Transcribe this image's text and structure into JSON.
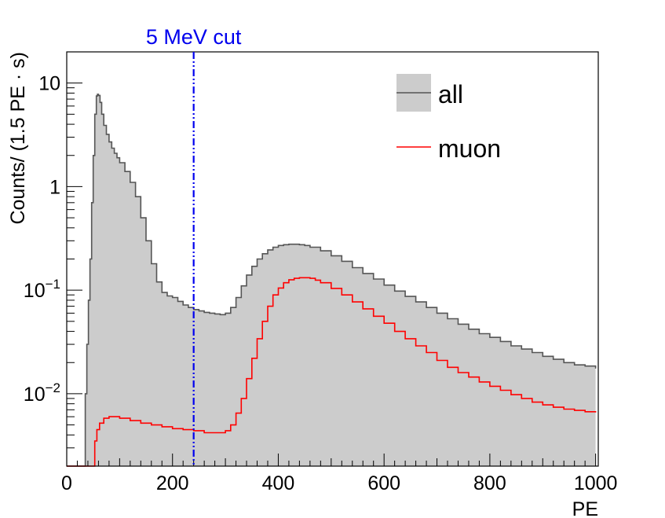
{
  "chart_data": {
    "type": "area",
    "xlabel": "PE",
    "ylabel": "Counts/ (1.5 PE · s)",
    "xlim": [
      0,
      1005
    ],
    "ylim": [
      0.002,
      20
    ],
    "yscale": "log",
    "x_ticks": [
      0,
      200,
      400,
      600,
      800,
      1000
    ],
    "y_ticks": [
      {
        "value": 10,
        "base": "10",
        "exp": ""
      },
      {
        "value": 1,
        "base": "1",
        "exp": ""
      },
      {
        "value": 0.1,
        "base": "10",
        "exp": "−1"
      },
      {
        "value": 0.01,
        "base": "10",
        "exp": "−2"
      }
    ],
    "grid": false,
    "legend_position": "top-right",
    "series": [
      {
        "name": "all",
        "style": "filled",
        "color": "#555555",
        "fill": "#cccccc",
        "points": [
          [
            0,
            0.0015
          ],
          [
            30,
            0.0015
          ],
          [
            34,
            0.0015
          ],
          [
            35,
            0.01
          ],
          [
            38,
            0.03
          ],
          [
            41,
            0.08
          ],
          [
            44,
            0.2
          ],
          [
            47,
            0.7
          ],
          [
            50,
            2.0
          ],
          [
            53,
            5.0
          ],
          [
            56,
            7.5
          ],
          [
            58,
            7.8
          ],
          [
            60,
            7.6
          ],
          [
            63,
            6.5
          ],
          [
            66,
            5.0
          ],
          [
            70,
            3.9
          ],
          [
            75,
            3.2
          ],
          [
            80,
            2.7
          ],
          [
            85,
            2.35
          ],
          [
            90,
            2.1
          ],
          [
            95,
            1.9
          ],
          [
            100,
            1.7
          ],
          [
            110,
            1.4
          ],
          [
            120,
            1.1
          ],
          [
            130,
            0.8
          ],
          [
            140,
            0.5
          ],
          [
            150,
            0.3
          ],
          [
            160,
            0.18
          ],
          [
            170,
            0.12
          ],
          [
            180,
            0.095
          ],
          [
            190,
            0.088
          ],
          [
            200,
            0.085
          ],
          [
            210,
            0.078
          ],
          [
            220,
            0.072
          ],
          [
            230,
            0.068
          ],
          [
            240,
            0.065
          ],
          [
            250,
            0.063
          ],
          [
            260,
            0.061
          ],
          [
            270,
            0.06
          ],
          [
            280,
            0.059
          ],
          [
            290,
            0.058
          ],
          [
            300,
            0.06
          ],
          [
            310,
            0.068
          ],
          [
            320,
            0.085
          ],
          [
            330,
            0.11
          ],
          [
            340,
            0.14
          ],
          [
            350,
            0.17
          ],
          [
            360,
            0.2
          ],
          [
            370,
            0.225
          ],
          [
            380,
            0.245
          ],
          [
            390,
            0.26
          ],
          [
            400,
            0.27
          ],
          [
            410,
            0.275
          ],
          [
            420,
            0.278
          ],
          [
            430,
            0.278
          ],
          [
            440,
            0.275
          ],
          [
            450,
            0.27
          ],
          [
            460,
            0.26
          ],
          [
            480,
            0.24
          ],
          [
            500,
            0.215
          ],
          [
            520,
            0.19
          ],
          [
            540,
            0.165
          ],
          [
            560,
            0.145
          ],
          [
            580,
            0.128
          ],
          [
            600,
            0.112
          ],
          [
            620,
            0.098
          ],
          [
            640,
            0.087
          ],
          [
            660,
            0.077
          ],
          [
            680,
            0.068
          ],
          [
            700,
            0.06
          ],
          [
            720,
            0.053
          ],
          [
            740,
            0.047
          ],
          [
            760,
            0.042
          ],
          [
            780,
            0.038
          ],
          [
            800,
            0.035
          ],
          [
            820,
            0.032
          ],
          [
            840,
            0.029
          ],
          [
            860,
            0.027
          ],
          [
            880,
            0.025
          ],
          [
            900,
            0.023
          ],
          [
            920,
            0.0215
          ],
          [
            940,
            0.02
          ],
          [
            960,
            0.019
          ],
          [
            980,
            0.0185
          ],
          [
            1000,
            0.0175
          ]
        ]
      },
      {
        "name": "muon",
        "style": "line",
        "color": "#ff0000",
        "points": [
          [
            0,
            0.0015
          ],
          [
            45,
            0.0015
          ],
          [
            49,
            0.0015
          ],
          [
            50,
            0.002
          ],
          [
            53,
            0.0035
          ],
          [
            57,
            0.0045
          ],
          [
            62,
            0.0052
          ],
          [
            70,
            0.0058
          ],
          [
            80,
            0.006
          ],
          [
            90,
            0.006
          ],
          [
            100,
            0.0058
          ],
          [
            120,
            0.0055
          ],
          [
            140,
            0.0052
          ],
          [
            160,
            0.005
          ],
          [
            180,
            0.0048
          ],
          [
            200,
            0.0046
          ],
          [
            220,
            0.0045
          ],
          [
            240,
            0.0044
          ],
          [
            260,
            0.0042
          ],
          [
            280,
            0.0042
          ],
          [
            300,
            0.0044
          ],
          [
            310,
            0.005
          ],
          [
            320,
            0.0065
          ],
          [
            330,
            0.009
          ],
          [
            340,
            0.014
          ],
          [
            350,
            0.022
          ],
          [
            360,
            0.034
          ],
          [
            370,
            0.05
          ],
          [
            380,
            0.07
          ],
          [
            390,
            0.09
          ],
          [
            400,
            0.105
          ],
          [
            410,
            0.118
          ],
          [
            420,
            0.126
          ],
          [
            430,
            0.13
          ],
          [
            440,
            0.132
          ],
          [
            450,
            0.132
          ],
          [
            460,
            0.13
          ],
          [
            470,
            0.125
          ],
          [
            480,
            0.118
          ],
          [
            500,
            0.104
          ],
          [
            520,
            0.09
          ],
          [
            540,
            0.077
          ],
          [
            560,
            0.066
          ],
          [
            580,
            0.056
          ],
          [
            600,
            0.048
          ],
          [
            620,
            0.04
          ],
          [
            640,
            0.034
          ],
          [
            660,
            0.029
          ],
          [
            680,
            0.025
          ],
          [
            700,
            0.021
          ],
          [
            720,
            0.018
          ],
          [
            740,
            0.016
          ],
          [
            760,
            0.0145
          ],
          [
            780,
            0.013
          ],
          [
            800,
            0.0118
          ],
          [
            820,
            0.0108
          ],
          [
            840,
            0.0098
          ],
          [
            860,
            0.009
          ],
          [
            880,
            0.0083
          ],
          [
            900,
            0.0078
          ],
          [
            920,
            0.0074
          ],
          [
            940,
            0.0071
          ],
          [
            960,
            0.0069
          ],
          [
            980,
            0.0067
          ],
          [
            1000,
            0.0066
          ]
        ]
      }
    ],
    "annotations": [
      {
        "type": "vline",
        "x": 240,
        "text": "5 MeV cut",
        "color": "#0000ee"
      }
    ]
  }
}
